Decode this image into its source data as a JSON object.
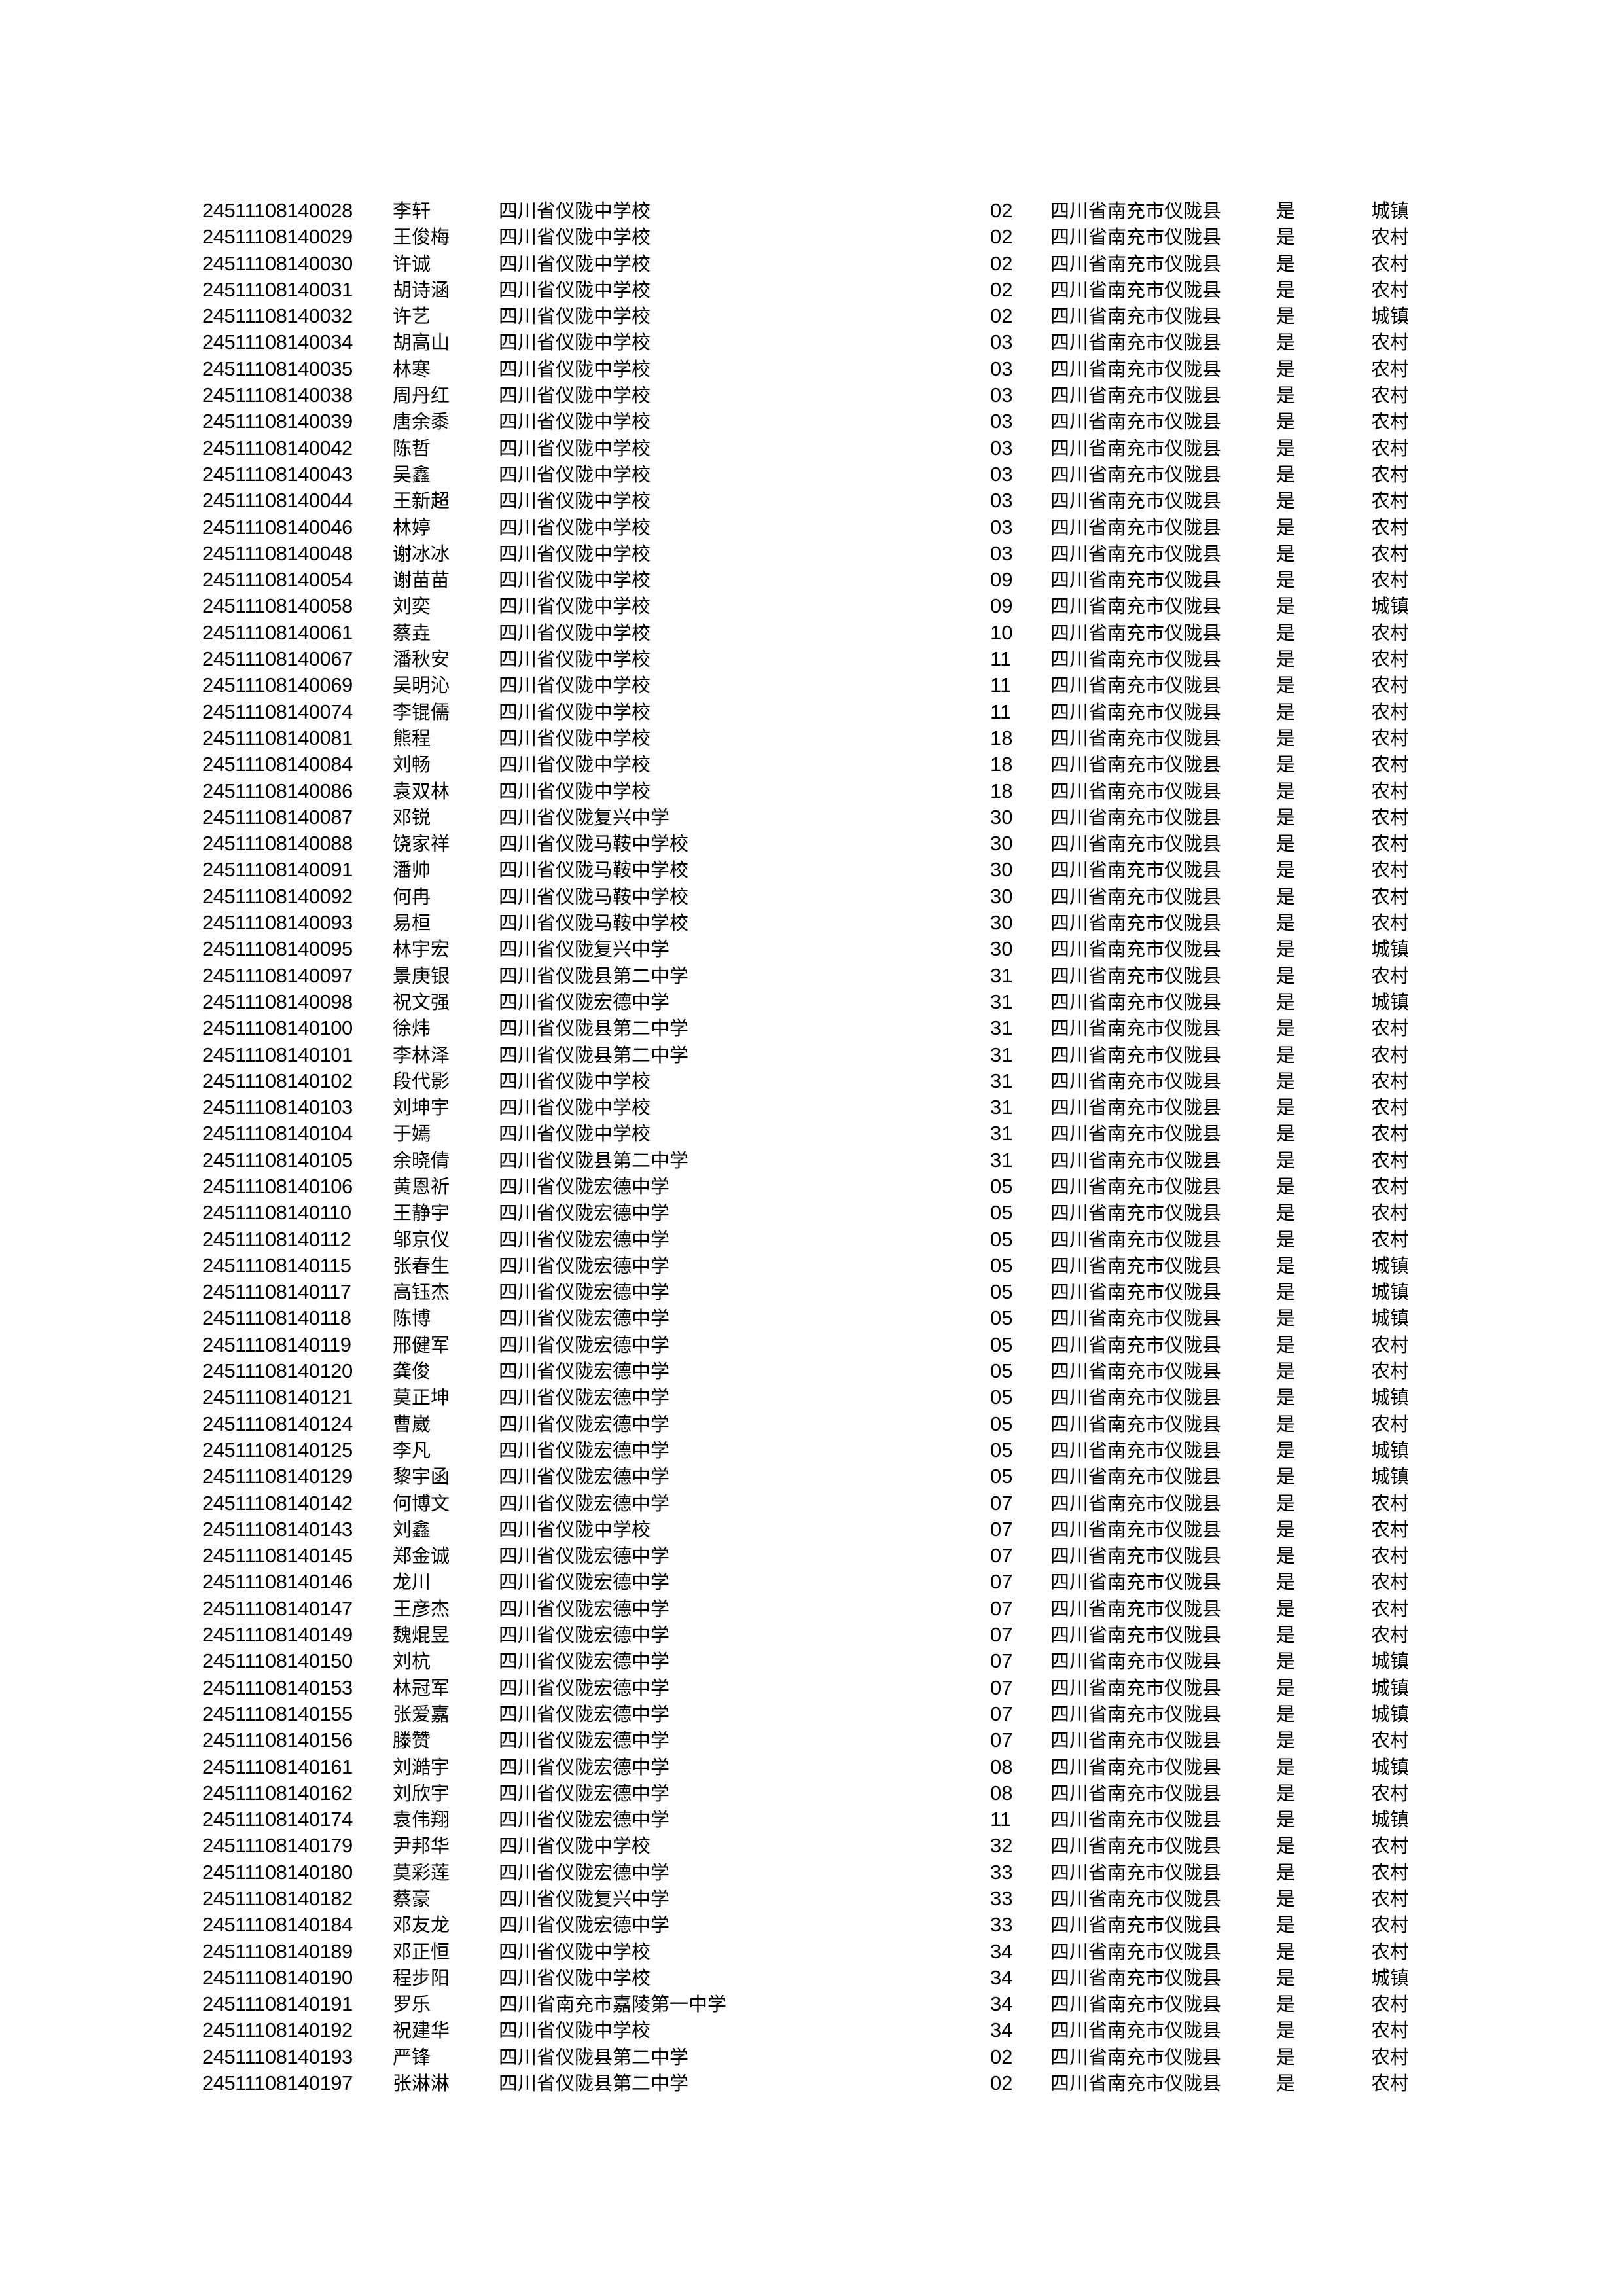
{
  "rows": [
    [
      "24511108140028",
      "李轩",
      "四川省仪陇中学校",
      "02",
      "四川省南充市仪陇县",
      "是",
      "城镇"
    ],
    [
      "24511108140029",
      "王俊梅",
      "四川省仪陇中学校",
      "02",
      "四川省南充市仪陇县",
      "是",
      "农村"
    ],
    [
      "24511108140030",
      "许诚",
      "四川省仪陇中学校",
      "02",
      "四川省南充市仪陇县",
      "是",
      "农村"
    ],
    [
      "24511108140031",
      "胡诗涵",
      "四川省仪陇中学校",
      "02",
      "四川省南充市仪陇县",
      "是",
      "农村"
    ],
    [
      "24511108140032",
      "许艺",
      "四川省仪陇中学校",
      "02",
      "四川省南充市仪陇县",
      "是",
      "城镇"
    ],
    [
      "24511108140034",
      "胡高山",
      "四川省仪陇中学校",
      "03",
      "四川省南充市仪陇县",
      "是",
      "农村"
    ],
    [
      "24511108140035",
      "林寒",
      "四川省仪陇中学校",
      "03",
      "四川省南充市仪陇县",
      "是",
      "农村"
    ],
    [
      "24511108140038",
      "周丹红",
      "四川省仪陇中学校",
      "03",
      "四川省南充市仪陇县",
      "是",
      "农村"
    ],
    [
      "24511108140039",
      "唐余黍",
      "四川省仪陇中学校",
      "03",
      "四川省南充市仪陇县",
      "是",
      "农村"
    ],
    [
      "24511108140042",
      "陈哲",
      "四川省仪陇中学校",
      "03",
      "四川省南充市仪陇县",
      "是",
      "农村"
    ],
    [
      "24511108140043",
      "吴鑫",
      "四川省仪陇中学校",
      "03",
      "四川省南充市仪陇县",
      "是",
      "农村"
    ],
    [
      "24511108140044",
      "王新超",
      "四川省仪陇中学校",
      "03",
      "四川省南充市仪陇县",
      "是",
      "农村"
    ],
    [
      "24511108140046",
      "林婷",
      "四川省仪陇中学校",
      "03",
      "四川省南充市仪陇县",
      "是",
      "农村"
    ],
    [
      "24511108140048",
      "谢冰冰",
      "四川省仪陇中学校",
      "03",
      "四川省南充市仪陇县",
      "是",
      "农村"
    ],
    [
      "24511108140054",
      "谢苗苗",
      "四川省仪陇中学校",
      "09",
      "四川省南充市仪陇县",
      "是",
      "农村"
    ],
    [
      "24511108140058",
      "刘奕",
      "四川省仪陇中学校",
      "09",
      "四川省南充市仪陇县",
      "是",
      "城镇"
    ],
    [
      "24511108140061",
      "蔡垚",
      "四川省仪陇中学校",
      "10",
      "四川省南充市仪陇县",
      "是",
      "农村"
    ],
    [
      "24511108140067",
      "潘秋安",
      "四川省仪陇中学校",
      "11",
      "四川省南充市仪陇县",
      "是",
      "农村"
    ],
    [
      "24511108140069",
      "吴明沁",
      "四川省仪陇中学校",
      "11",
      "四川省南充市仪陇县",
      "是",
      "农村"
    ],
    [
      "24511108140074",
      "李锟儒",
      "四川省仪陇中学校",
      "11",
      "四川省南充市仪陇县",
      "是",
      "农村"
    ],
    [
      "24511108140081",
      "熊程",
      "四川省仪陇中学校",
      "18",
      "四川省南充市仪陇县",
      "是",
      "农村"
    ],
    [
      "24511108140084",
      "刘畅",
      "四川省仪陇中学校",
      "18",
      "四川省南充市仪陇县",
      "是",
      "农村"
    ],
    [
      "24511108140086",
      "袁双林",
      "四川省仪陇中学校",
      "18",
      "四川省南充市仪陇县",
      "是",
      "农村"
    ],
    [
      "24511108140087",
      "邓锐",
      "四川省仪陇复兴中学",
      "30",
      "四川省南充市仪陇县",
      "是",
      "农村"
    ],
    [
      "24511108140088",
      "饶家祥",
      "四川省仪陇马鞍中学校",
      "30",
      "四川省南充市仪陇县",
      "是",
      "农村"
    ],
    [
      "24511108140091",
      "潘帅",
      "四川省仪陇马鞍中学校",
      "30",
      "四川省南充市仪陇县",
      "是",
      "农村"
    ],
    [
      "24511108140092",
      "何冉",
      "四川省仪陇马鞍中学校",
      "30",
      "四川省南充市仪陇县",
      "是",
      "农村"
    ],
    [
      "24511108140093",
      "易桓",
      "四川省仪陇马鞍中学校",
      "30",
      "四川省南充市仪陇县",
      "是",
      "农村"
    ],
    [
      "24511108140095",
      "林宇宏",
      "四川省仪陇复兴中学",
      "30",
      "四川省南充市仪陇县",
      "是",
      "城镇"
    ],
    [
      "24511108140097",
      "景庚银",
      "四川省仪陇县第二中学",
      "31",
      "四川省南充市仪陇县",
      "是",
      "农村"
    ],
    [
      "24511108140098",
      "祝文强",
      "四川省仪陇宏德中学",
      "31",
      "四川省南充市仪陇县",
      "是",
      "城镇"
    ],
    [
      "24511108140100",
      "徐炜",
      "四川省仪陇县第二中学",
      "31",
      "四川省南充市仪陇县",
      "是",
      "农村"
    ],
    [
      "24511108140101",
      "李林泽",
      "四川省仪陇县第二中学",
      "31",
      "四川省南充市仪陇县",
      "是",
      "农村"
    ],
    [
      "24511108140102",
      "段代影",
      "四川省仪陇中学校",
      "31",
      "四川省南充市仪陇县",
      "是",
      "农村"
    ],
    [
      "24511108140103",
      "刘坤宇",
      "四川省仪陇中学校",
      "31",
      "四川省南充市仪陇县",
      "是",
      "农村"
    ],
    [
      "24511108140104",
      "于嫣",
      "四川省仪陇中学校",
      "31",
      "四川省南充市仪陇县",
      "是",
      "农村"
    ],
    [
      "24511108140105",
      "余晓倩",
      "四川省仪陇县第二中学",
      "31",
      "四川省南充市仪陇县",
      "是",
      "农村"
    ],
    [
      "24511108140106",
      "黄恩祈",
      "四川省仪陇宏德中学",
      "05",
      "四川省南充市仪陇县",
      "是",
      "农村"
    ],
    [
      "24511108140110",
      "王静宇",
      "四川省仪陇宏德中学",
      "05",
      "四川省南充市仪陇县",
      "是",
      "农村"
    ],
    [
      "24511108140112",
      "邬京仪",
      "四川省仪陇宏德中学",
      "05",
      "四川省南充市仪陇县",
      "是",
      "农村"
    ],
    [
      "24511108140115",
      "张春生",
      "四川省仪陇宏德中学",
      "05",
      "四川省南充市仪陇县",
      "是",
      "城镇"
    ],
    [
      "24511108140117",
      "高钰杰",
      "四川省仪陇宏德中学",
      "05",
      "四川省南充市仪陇县",
      "是",
      "城镇"
    ],
    [
      "24511108140118",
      "陈博",
      "四川省仪陇宏德中学",
      "05",
      "四川省南充市仪陇县",
      "是",
      "城镇"
    ],
    [
      "24511108140119",
      "邢健军",
      "四川省仪陇宏德中学",
      "05",
      "四川省南充市仪陇县",
      "是",
      "农村"
    ],
    [
      "24511108140120",
      "龚俊",
      "四川省仪陇宏德中学",
      "05",
      "四川省南充市仪陇县",
      "是",
      "农村"
    ],
    [
      "24511108140121",
      "莫正坤",
      "四川省仪陇宏德中学",
      "05",
      "四川省南充市仪陇县",
      "是",
      "城镇"
    ],
    [
      "24511108140124",
      "曹崴",
      "四川省仪陇宏德中学",
      "05",
      "四川省南充市仪陇县",
      "是",
      "农村"
    ],
    [
      "24511108140125",
      "李凡",
      "四川省仪陇宏德中学",
      "05",
      "四川省南充市仪陇县",
      "是",
      "城镇"
    ],
    [
      "24511108140129",
      "黎宇函",
      "四川省仪陇宏德中学",
      "05",
      "四川省南充市仪陇县",
      "是",
      "城镇"
    ],
    [
      "24511108140142",
      "何博文",
      "四川省仪陇宏德中学",
      "07",
      "四川省南充市仪陇县",
      "是",
      "农村"
    ],
    [
      "24511108140143",
      "刘鑫",
      "四川省仪陇中学校",
      "07",
      "四川省南充市仪陇县",
      "是",
      "农村"
    ],
    [
      "24511108140145",
      "郑金诚",
      "四川省仪陇宏德中学",
      "07",
      "四川省南充市仪陇县",
      "是",
      "农村"
    ],
    [
      "24511108140146",
      "龙川",
      "四川省仪陇宏德中学",
      "07",
      "四川省南充市仪陇县",
      "是",
      "农村"
    ],
    [
      "24511108140147",
      "王彦杰",
      "四川省仪陇宏德中学",
      "07",
      "四川省南充市仪陇县",
      "是",
      "农村"
    ],
    [
      "24511108140149",
      "魏焜昱",
      "四川省仪陇宏德中学",
      "07",
      "四川省南充市仪陇县",
      "是",
      "农村"
    ],
    [
      "24511108140150",
      "刘杭",
      "四川省仪陇宏德中学",
      "07",
      "四川省南充市仪陇县",
      "是",
      "城镇"
    ],
    [
      "24511108140153",
      "林冠军",
      "四川省仪陇宏德中学",
      "07",
      "四川省南充市仪陇县",
      "是",
      "城镇"
    ],
    [
      "24511108140155",
      "张爱嘉",
      "四川省仪陇宏德中学",
      "07",
      "四川省南充市仪陇县",
      "是",
      "城镇"
    ],
    [
      "24511108140156",
      "滕赞",
      "四川省仪陇宏德中学",
      "07",
      "四川省南充市仪陇县",
      "是",
      "农村"
    ],
    [
      "24511108140161",
      "刘澔宇",
      "四川省仪陇宏德中学",
      "08",
      "四川省南充市仪陇县",
      "是",
      "城镇"
    ],
    [
      "24511108140162",
      "刘欣宇",
      "四川省仪陇宏德中学",
      "08",
      "四川省南充市仪陇县",
      "是",
      "农村"
    ],
    [
      "24511108140174",
      "袁伟翔",
      "四川省仪陇宏德中学",
      "11",
      "四川省南充市仪陇县",
      "是",
      "城镇"
    ],
    [
      "24511108140179",
      "尹邦华",
      "四川省仪陇中学校",
      "32",
      "四川省南充市仪陇县",
      "是",
      "农村"
    ],
    [
      "24511108140180",
      "莫彩莲",
      "四川省仪陇宏德中学",
      "33",
      "四川省南充市仪陇县",
      "是",
      "农村"
    ],
    [
      "24511108140182",
      "蔡豪",
      "四川省仪陇复兴中学",
      "33",
      "四川省南充市仪陇县",
      "是",
      "农村"
    ],
    [
      "24511108140184",
      "邓友龙",
      "四川省仪陇宏德中学",
      "33",
      "四川省南充市仪陇县",
      "是",
      "农村"
    ],
    [
      "24511108140189",
      "邓正恒",
      "四川省仪陇中学校",
      "34",
      "四川省南充市仪陇县",
      "是",
      "农村"
    ],
    [
      "24511108140190",
      "程步阳",
      "四川省仪陇中学校",
      "34",
      "四川省南充市仪陇县",
      "是",
      "城镇"
    ],
    [
      "24511108140191",
      "罗乐",
      "四川省南充市嘉陵第一中学",
      "34",
      "四川省南充市仪陇县",
      "是",
      "农村"
    ],
    [
      "24511108140192",
      "祝建华",
      "四川省仪陇中学校",
      "34",
      "四川省南充市仪陇县",
      "是",
      "农村"
    ],
    [
      "24511108140193",
      "严锋",
      "四川省仪陇县第二中学",
      "02",
      "四川省南充市仪陇县",
      "是",
      "农村"
    ],
    [
      "24511108140197",
      "张淋淋",
      "四川省仪陇县第二中学",
      "02",
      "四川省南充市仪陇县",
      "是",
      "农村"
    ]
  ]
}
